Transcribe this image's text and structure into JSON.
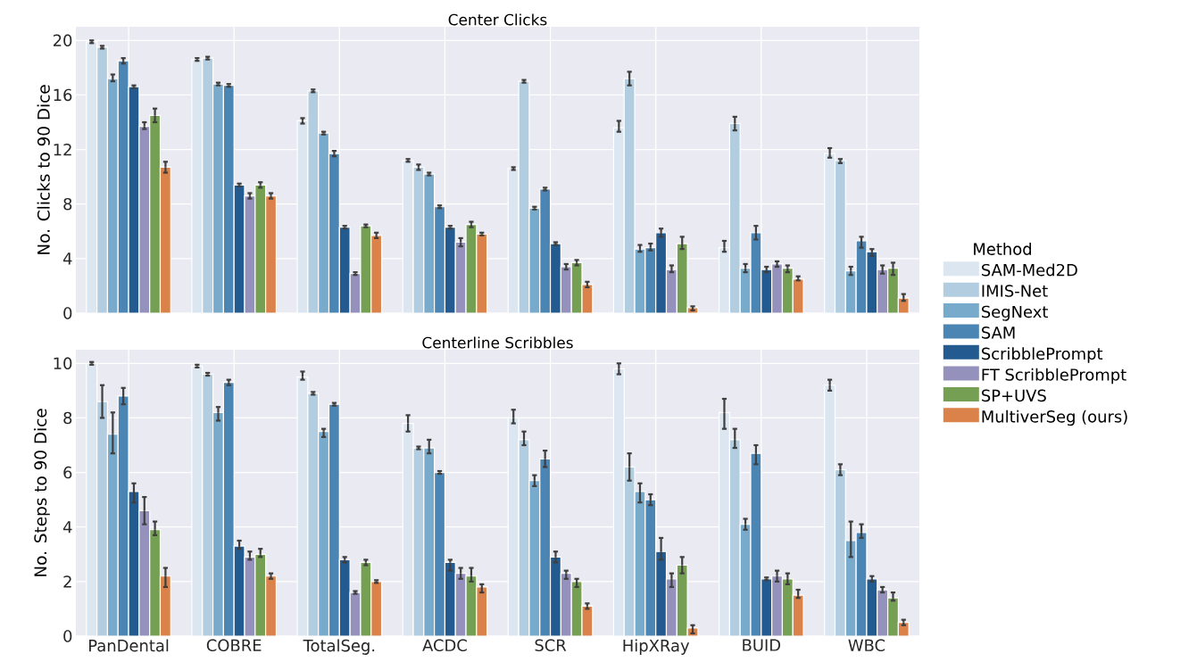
{
  "chart_data": [
    {
      "type": "bar",
      "title": "Center Clicks",
      "ylabel": "No. Clicks to 90 Dice",
      "legend_title": "Method",
      "legend": "right",
      "grid": true,
      "tick_labels": "y",
      "categories": [
        null,
        null,
        null,
        null,
        null,
        null,
        null,
        null
      ],
      "ylim": [
        0,
        21
      ],
      "yticks": [
        0,
        4,
        8,
        12,
        16,
        20
      ],
      "series": [
        {
          "name": "SAM-Med2D",
          "color": "#dbe6f1",
          "values": [
            19.9,
            18.6,
            14.1,
            11.2,
            10.6,
            13.6,
            4.8,
            11.7
          ],
          "errors": [
            0.1,
            0.1,
            [
              13.9,
              14.3
            ],
            0.1,
            0.1,
            [
              13.3,
              14.1
            ],
            [
              4.5,
              5.3
            ],
            [
              11.4,
              12.1
            ]
          ]
        },
        {
          "name": "IMIS-Net",
          "color": "#b3cde0",
          "values": [
            19.5,
            18.7,
            16.3,
            10.7,
            17.0,
            17.2,
            13.9,
            11.2
          ],
          "errors": [
            0.1,
            0.1,
            0.1,
            [
              10.5,
              10.9
            ],
            0.1,
            [
              16.7,
              17.7
            ],
            [
              13.4,
              14.4
            ],
            [
              11.0,
              11.3
            ]
          ]
        },
        {
          "name": "SegNext",
          "color": "#78aacb",
          "values": [
            17.2,
            16.8,
            13.2,
            10.2,
            7.7,
            4.7,
            3.3,
            3.1
          ],
          "errors": [
            [
              17.0,
              17.5
            ],
            0.1,
            0.1,
            0.1,
            0.1,
            [
              4.5,
              5.0
            ],
            [
              3.0,
              3.6
            ],
            [
              2.8,
              3.4
            ]
          ]
        },
        {
          "name": "SAM",
          "color": "#4a85b3",
          "values": [
            18.5,
            16.7,
            11.7,
            7.8,
            9.1,
            4.8,
            5.9,
            5.3
          ],
          "errors": [
            [
              18.3,
              18.7
            ],
            0.1,
            [
              11.5,
              11.9
            ],
            0.1,
            0.1,
            [
              4.6,
              5.1
            ],
            [
              5.4,
              6.4
            ],
            [
              4.8,
              5.6
            ]
          ]
        },
        {
          "name": "ScribblePrompt",
          "color": "#235b91",
          "values": [
            16.6,
            9.4,
            6.3,
            6.3,
            5.1,
            5.9,
            3.2,
            4.5
          ],
          "errors": [
            0.1,
            0.1,
            0.1,
            0.1,
            0.1,
            [
              5.6,
              6.2
            ],
            [
              3.0,
              3.4
            ],
            [
              4.2,
              4.7
            ]
          ]
        },
        {
          "name": "FT ScribblePrompt",
          "color": "#9591bd",
          "values": [
            13.7,
            8.6,
            2.9,
            5.2,
            3.4,
            3.2,
            3.6,
            3.2
          ],
          "errors": [
            [
              13.5,
              14.0
            ],
            [
              8.4,
              8.8
            ],
            0.1,
            [
              4.9,
              5.5
            ],
            [
              3.2,
              3.6
            ],
            [
              3.0,
              3.5
            ],
            [
              3.4,
              3.8
            ],
            [
              2.9,
              3.5
            ]
          ]
        },
        {
          "name": "SP+UVS",
          "color": "#75a054",
          "values": [
            14.5,
            9.4,
            6.4,
            6.5,
            3.7,
            5.1,
            3.3,
            3.3
          ],
          "errors": [
            [
              14.0,
              15.0
            ],
            [
              9.2,
              9.6
            ],
            0.1,
            [
              6.3,
              6.7
            ],
            [
              3.5,
              3.9
            ],
            [
              4.7,
              5.6
            ],
            [
              3.0,
              3.5
            ],
            [
              2.8,
              3.7
            ]
          ]
        },
        {
          "name": "MultiverSeg (ours)",
          "color": "#da824a",
          "values": [
            10.7,
            8.6,
            5.7,
            5.8,
            2.1,
            0.4,
            2.5,
            1.1
          ],
          "errors": [
            [
              10.3,
              11.1
            ],
            [
              8.4,
              8.8
            ],
            [
              5.5,
              5.9
            ],
            0.1,
            [
              1.9,
              2.3
            ],
            [
              0.2,
              0.5
            ],
            [
              2.4,
              2.7
            ],
            [
              0.9,
              1.4
            ]
          ]
        }
      ]
    },
    {
      "type": "bar",
      "title": "Centerline Scribbles",
      "ylabel": "No. Steps to 90 Dice",
      "grid": true,
      "categories": [
        "PanDental",
        "COBRE",
        "TotalSeg.",
        "ACDC",
        "SCR",
        "HipXRay",
        "BUID",
        "WBC"
      ],
      "ylim": [
        0,
        10.5
      ],
      "yticks": [
        0,
        2,
        4,
        6,
        8,
        10
      ],
      "series": [
        {
          "color": "#dbe6f1",
          "values": [
            10.0,
            9.9,
            9.5,
            7.8,
            8.0,
            9.8,
            8.2,
            9.2
          ],
          "errors": [
            0.05,
            0.05,
            [
              9.4,
              9.7
            ],
            [
              7.5,
              8.1
            ],
            [
              7.8,
              8.3
            ],
            [
              9.6,
              10.0
            ],
            [
              7.6,
              8.7
            ],
            [
              9.0,
              9.4
            ]
          ]
        },
        {
          "color": "#b3cde0",
          "values": [
            8.6,
            9.6,
            8.9,
            6.9,
            7.2,
            6.2,
            7.2,
            6.1
          ],
          "errors": [
            [
              8.0,
              9.2
            ],
            0.05,
            0.05,
            0.05,
            [
              7.0,
              7.5
            ],
            [
              5.7,
              6.7
            ],
            [
              6.9,
              7.6
            ],
            [
              5.9,
              6.3
            ]
          ]
        },
        {
          "color": "#78aacb",
          "values": [
            7.4,
            8.2,
            7.5,
            6.9,
            5.7,
            5.3,
            4.1,
            3.5
          ],
          "errors": [
            [
              6.7,
              8.2
            ],
            [
              7.9,
              8.4
            ],
            [
              7.3,
              7.6
            ],
            [
              6.7,
              7.2
            ],
            [
              5.5,
              5.9
            ],
            [
              4.9,
              5.6
            ],
            [
              3.9,
              4.3
            ],
            [
              2.9,
              4.2
            ]
          ]
        },
        {
          "color": "#4a85b3",
          "values": [
            8.8,
            9.3,
            8.5,
            6.0,
            6.5,
            5.0,
            6.7,
            3.8
          ],
          "errors": [
            [
              8.5,
              9.1
            ],
            [
              9.2,
              9.4
            ],
            0.05,
            0.05,
            [
              6.2,
              6.8
            ],
            [
              4.8,
              5.2
            ],
            [
              6.3,
              7.0
            ],
            [
              3.6,
              4.1
            ]
          ]
        },
        {
          "color": "#235b91",
          "values": [
            5.3,
            3.3,
            2.8,
            2.7,
            2.9,
            3.1,
            2.1,
            2.1
          ],
          "errors": [
            [
              4.9,
              5.6
            ],
            [
              3.2,
              3.5
            ],
            [
              2.7,
              2.9
            ],
            [
              2.4,
              2.8
            ],
            [
              2.7,
              3.1
            ],
            [
              2.8,
              3.6
            ],
            0.05,
            [
              2.0,
              2.2
            ]
          ]
        },
        {
          "color": "#9591bd",
          "values": [
            4.6,
            2.9,
            1.6,
            2.3,
            2.3,
            2.1,
            2.2,
            1.7
          ],
          "errors": [
            [
              4.1,
              5.1
            ],
            [
              2.8,
              3.1
            ],
            0.05,
            [
              2.1,
              2.5
            ],
            [
              2.1,
              2.4
            ],
            [
              1.8,
              2.3
            ],
            [
              2.0,
              2.4
            ],
            [
              1.6,
              1.8
            ]
          ]
        },
        {
          "color": "#75a054",
          "values": [
            3.9,
            3.0,
            2.7,
            2.2,
            2.0,
            2.6,
            2.1,
            1.4
          ],
          "errors": [
            [
              3.7,
              4.2
            ],
            [
              2.9,
              3.2
            ],
            [
              2.6,
              2.8
            ],
            [
              2.0,
              2.5
            ],
            [
              1.8,
              2.1
            ],
            [
              2.3,
              2.9
            ],
            [
              1.9,
              2.3
            ],
            [
              1.3,
              1.6
            ]
          ]
        },
        {
          "color": "#da824a",
          "values": [
            2.2,
            2.2,
            2.0,
            1.8,
            1.1,
            0.3,
            1.5,
            0.5
          ],
          "errors": [
            [
              1.8,
              2.5
            ],
            [
              2.1,
              2.3
            ],
            0.05,
            [
              1.6,
              1.9
            ],
            [
              1.0,
              1.2
            ],
            [
              0.1,
              0.4
            ],
            [
              1.4,
              1.7
            ],
            [
              0.4,
              0.6
            ]
          ]
        }
      ]
    }
  ]
}
